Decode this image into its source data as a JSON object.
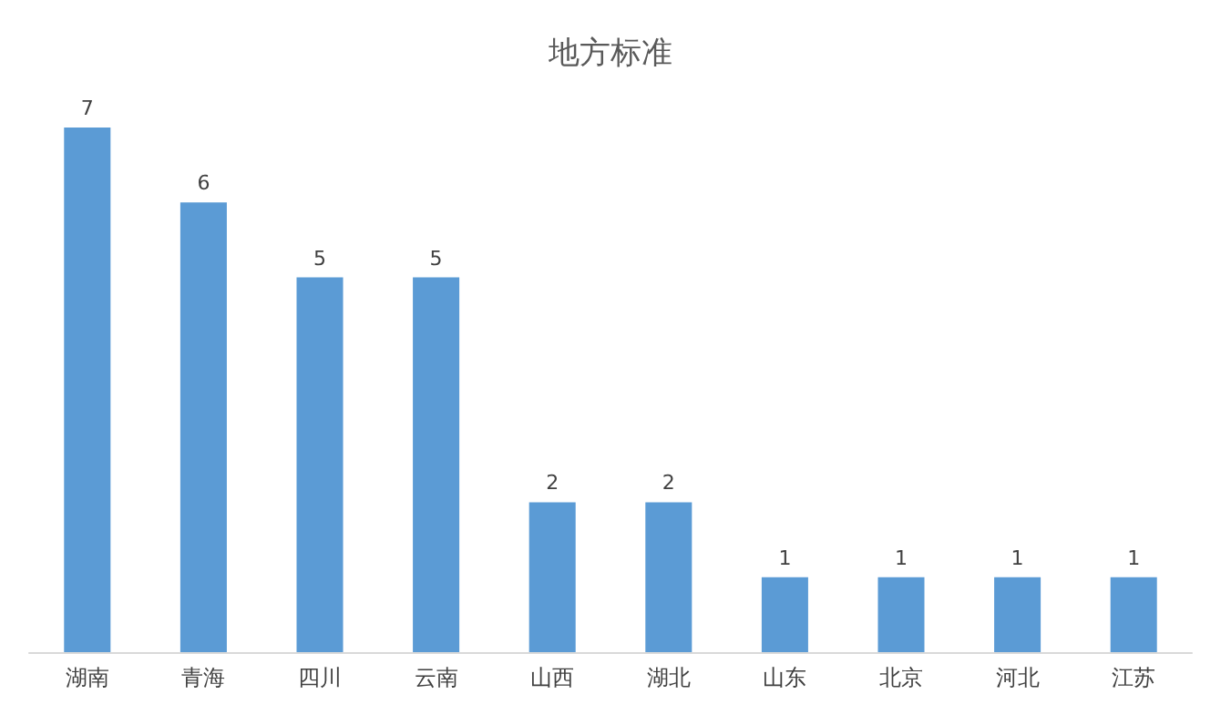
{
  "chart_data": {
    "type": "bar",
    "title": "地方标准",
    "categories": [
      "湖南",
      "青海",
      "四川",
      "云南",
      "山西",
      "湖北",
      "山东",
      "北京",
      "河北",
      "江苏"
    ],
    "values": [
      7,
      6,
      5,
      5,
      2,
      2,
      1,
      1,
      1,
      1
    ],
    "color": "#5b9bd5",
    "data_labels": true,
    "grid": false
  }
}
